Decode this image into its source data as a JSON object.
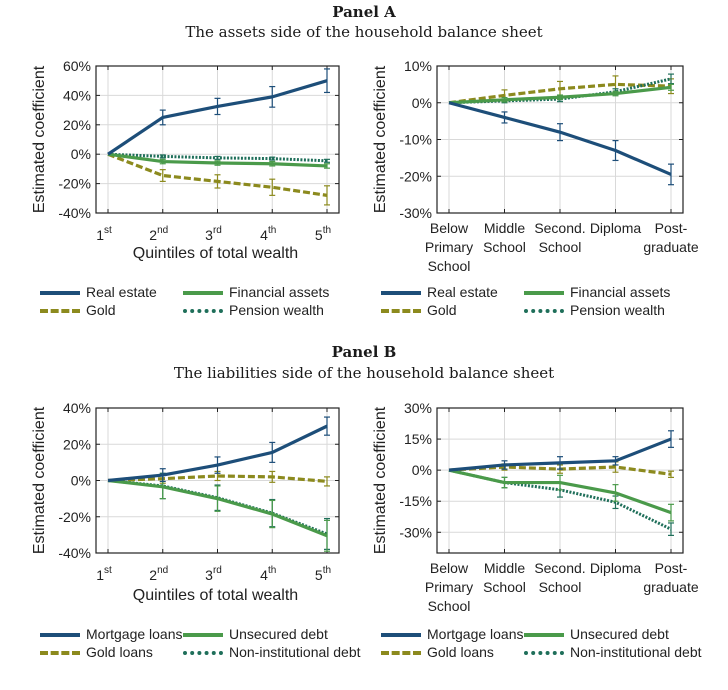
{
  "panels": [
    {
      "title": "Panel A",
      "subtitle": "The assets side of the household balance sheet"
    },
    {
      "title": "Panel B",
      "subtitle": "The liabilities side of the household balance sheet"
    }
  ],
  "colors": {
    "navy": "#1d4e79",
    "green": "#4a9a4a",
    "olive": "#8c8a1e",
    "teal": "#1f6f5a",
    "grid": "#d9d9d9"
  },
  "legends": {
    "assets": [
      {
        "label": "Real estate",
        "color": "#1d4e79",
        "style": "solid"
      },
      {
        "label": "Financial assets",
        "color": "#4a9a4a",
        "style": "solid"
      },
      {
        "label": "Gold",
        "color": "#8c8a1e",
        "style": "dashed"
      },
      {
        "label": "Pension wealth",
        "color": "#1f6f5a",
        "style": "dotted"
      }
    ],
    "liabilities": [
      {
        "label": "Mortgage loans",
        "color": "#1d4e79",
        "style": "solid"
      },
      {
        "label": "Unsecured debt",
        "color": "#4a9a4a",
        "style": "solid"
      },
      {
        "label": "Gold loans",
        "color": "#8c8a1e",
        "style": "dashed"
      },
      {
        "label": "Non-institutional debt",
        "color": "#1f6f5a",
        "style": "dotted"
      }
    ]
  },
  "chart_data": [
    {
      "id": "A-wealth",
      "type": "line",
      "title": "",
      "xlabel": "Quintiles of total wealth",
      "ylabel": "Estimated coefficient",
      "categories": [
        [
          "1",
          "st"
        ],
        [
          "2",
          "nd"
        ],
        [
          "3",
          "rd"
        ],
        [
          "4",
          "th"
        ],
        [
          "5",
          "th"
        ]
      ],
      "ylim": [
        -40,
        60
      ],
      "yticks": [
        60,
        40,
        20,
        0,
        -20,
        -40
      ],
      "ytick_suffix": "%",
      "grid": true,
      "series": [
        {
          "name": "Real estate",
          "color": "#1d4e79",
          "style": "solid",
          "values": [
            0,
            25,
            32.5,
            39,
            50
          ],
          "err": [
            0,
            5,
            5.5,
            7,
            8
          ]
        },
        {
          "name": "Financial assets",
          "color": "#4a9a4a",
          "style": "solid",
          "values": [
            0,
            -5,
            -6,
            -6.5,
            -8
          ],
          "err": [
            0,
            1.5,
            1.5,
            1.5,
            1.5
          ]
        },
        {
          "name": "Gold",
          "color": "#8c8a1e",
          "style": "dashed",
          "values": [
            0,
            -14.5,
            -18.5,
            -22.5,
            -28
          ],
          "err": [
            0,
            4,
            4.5,
            5.5,
            6.5
          ]
        },
        {
          "name": "Pension wealth",
          "color": "#1f6f5a",
          "style": "dotted",
          "values": [
            0,
            -1.5,
            -2.5,
            -3,
            -4.5
          ],
          "err": [
            0,
            1,
            1,
            1,
            1
          ]
        }
      ]
    },
    {
      "id": "A-education",
      "type": "line",
      "title": "",
      "xlabel": "",
      "ylabel": "Estimated coefficient",
      "categories": [
        [
          "Below",
          "Primary",
          "School"
        ],
        [
          "Middle",
          "School"
        ],
        [
          "Second.",
          "School"
        ],
        [
          "Diploma"
        ],
        [
          "Post-",
          "graduate"
        ]
      ],
      "ylim": [
        -30,
        10
      ],
      "yticks": [
        10,
        0,
        -10,
        -20,
        -30
      ],
      "ytick_suffix": "%",
      "grid": true,
      "series": [
        {
          "name": "Real estate",
          "color": "#1d4e79",
          "style": "solid",
          "values": [
            0,
            -4,
            -8,
            -13,
            -19.5
          ],
          "err": [
            0,
            1.5,
            2.3,
            2.7,
            2.8
          ]
        },
        {
          "name": "Financial assets",
          "color": "#4a9a4a",
          "style": "solid",
          "values": [
            0,
            0.8,
            1.5,
            2.5,
            4.2
          ],
          "err": [
            0,
            0.6,
            0.6,
            0.6,
            0.8
          ]
        },
        {
          "name": "Gold",
          "color": "#8c8a1e",
          "style": "dashed",
          "values": [
            0,
            2,
            3.8,
            5,
            4.5
          ],
          "err": [
            0,
            1.5,
            2,
            2.3,
            2
          ]
        },
        {
          "name": "Pension wealth",
          "color": "#1f6f5a",
          "style": "dotted",
          "values": [
            0,
            0.5,
            1,
            3,
            6.5
          ],
          "err": [
            0,
            0.5,
            0.7,
            0.8,
            1.3
          ]
        }
      ]
    },
    {
      "id": "B-wealth",
      "type": "line",
      "title": "",
      "xlabel": "Quintiles of total wealth",
      "ylabel": "Estimated coefficient",
      "categories": [
        [
          "1",
          "st"
        ],
        [
          "2",
          "nd"
        ],
        [
          "3",
          "rd"
        ],
        [
          "4",
          "th"
        ],
        [
          "5",
          "th"
        ]
      ],
      "ylim": [
        -40,
        40
      ],
      "yticks": [
        40,
        20,
        0,
        -20,
        -40
      ],
      "ytick_suffix": "%",
      "grid": true,
      "series": [
        {
          "name": "Mortgage loans",
          "color": "#1d4e79",
          "style": "solid",
          "values": [
            0,
            3,
            8.5,
            15.5,
            30
          ],
          "err": [
            0,
            3.5,
            4.5,
            5.5,
            5
          ]
        },
        {
          "name": "Unsecured debt",
          "color": "#4a9a4a",
          "style": "solid",
          "values": [
            0,
            -3.5,
            -10,
            -18.5,
            -30.5
          ],
          "err": [
            0,
            6.5,
            7,
            7.5,
            8.5
          ]
        },
        {
          "name": "Gold loans",
          "color": "#8c8a1e",
          "style": "dashed",
          "values": [
            0,
            1,
            2.5,
            2,
            -0.5
          ],
          "err": [
            0,
            2.5,
            2.5,
            3,
            2.5
          ]
        },
        {
          "name": "Non-institutional debt",
          "color": "#1f6f5a",
          "style": "dotted",
          "values": [
            0,
            -3,
            -9.5,
            -18,
            -29.5
          ],
          "err": [
            0,
            7,
            7,
            7.5,
            8.5
          ]
        }
      ]
    },
    {
      "id": "B-education",
      "type": "line",
      "title": "",
      "xlabel": "",
      "ylabel": "Estimated coefficient",
      "categories": [
        [
          "Below",
          "Primary",
          "School"
        ],
        [
          "Middle",
          "School"
        ],
        [
          "Second.",
          "School"
        ],
        [
          "Diploma"
        ],
        [
          "Post-",
          "graduate"
        ]
      ],
      "ylim": [
        -40,
        30
      ],
      "yticks": [
        30,
        15,
        0,
        -15,
        -30
      ],
      "ytick_suffix": "%",
      "grid": true,
      "series": [
        {
          "name": "Mortgage loans",
          "color": "#1d4e79",
          "style": "solid",
          "values": [
            0,
            2.5,
            3.5,
            4.5,
            15
          ],
          "err": [
            0,
            2,
            3,
            2,
            4
          ]
        },
        {
          "name": "Unsecured debt",
          "color": "#4a9a4a",
          "style": "solid",
          "values": [
            0,
            -6,
            -6,
            -11,
            -20.5
          ],
          "err": [
            0,
            2.5,
            3.5,
            4,
            4
          ]
        },
        {
          "name": "Gold loans",
          "color": "#8c8a1e",
          "style": "dashed",
          "values": [
            0,
            1.5,
            0.5,
            1.5,
            -2
          ],
          "err": [
            0,
            1.5,
            2,
            2.5,
            1.5
          ]
        },
        {
          "name": "Non-institutional debt",
          "color": "#1f6f5a",
          "style": "dotted",
          "values": [
            0,
            -6,
            -9.5,
            -15.5,
            -28.5
          ],
          "err": [
            0,
            2.5,
            3.5,
            3,
            3
          ]
        }
      ]
    }
  ]
}
